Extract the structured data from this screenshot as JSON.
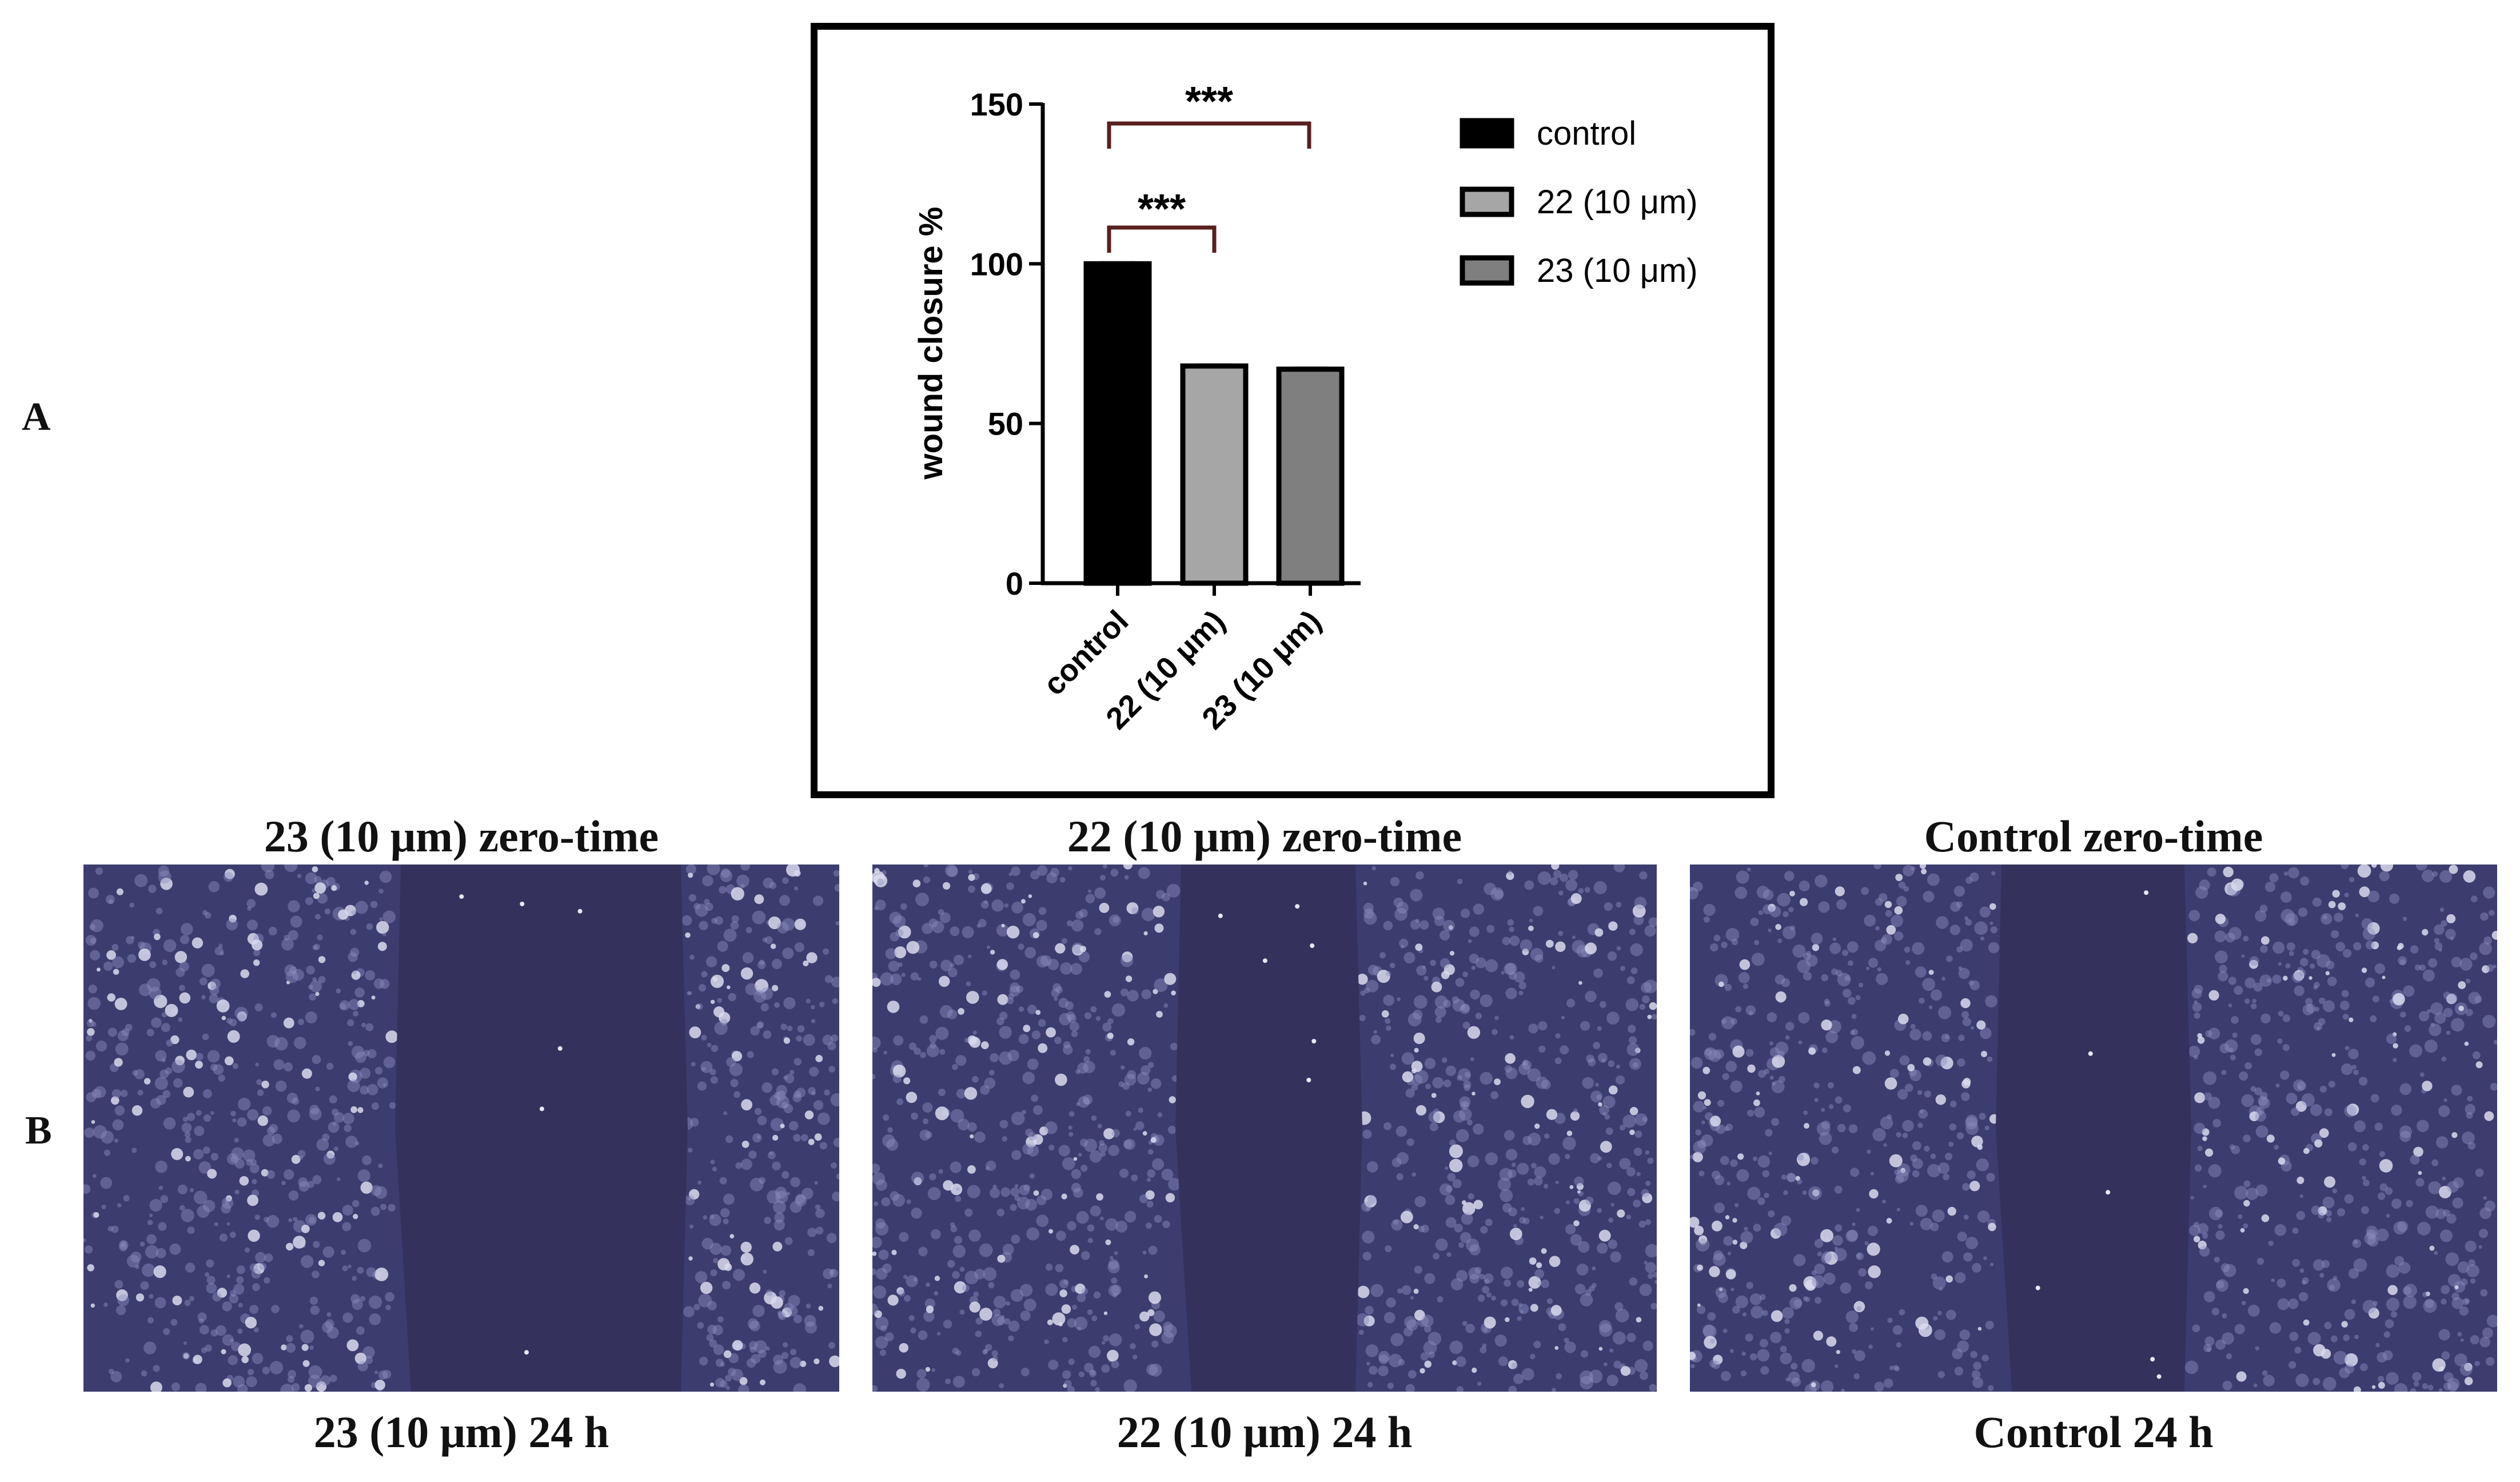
{
  "panels": {
    "a_label": "A",
    "b_label": "B"
  },
  "colors": {
    "control": "#000000",
    "c22": "#a6a6a6",
    "c23": "#7f7f7f",
    "bracket": "#5a1f1f",
    "cells": "#3c3d6e",
    "scratch": "#34325c"
  },
  "chart_data": {
    "type": "bar",
    "categories": [
      "control",
      "22 (10 μm)",
      "23 (10 μm)"
    ],
    "series": [
      {
        "name": "control",
        "values": [
          100,
          null,
          null
        ]
      },
      {
        "name": "22 (10 μm)",
        "values": [
          null,
          68,
          null
        ]
      },
      {
        "name": "23 (10 μm)",
        "values": [
          null,
          null,
          67
        ]
      }
    ],
    "ylabel": "wound closure %",
    "xlabel": "",
    "ylim": [
      0,
      150
    ],
    "yticks": [
      0,
      50,
      100,
      150
    ],
    "legend": {
      "position": "right",
      "entries": [
        "control",
        "22 (10 μm)",
        "23 (10 μm)"
      ]
    },
    "annotations": [
      {
        "from": "control",
        "to": "22 (10 μm)",
        "text": "***"
      },
      {
        "from": "control",
        "to": "23 (10 μm)",
        "text": "***"
      }
    ],
    "grid": false
  },
  "micrographs": [
    {
      "top_caption": "23 (10 μm) zero-time",
      "bottom_caption": "23 (10 μm) 24 h",
      "icon": "cell-micrograph"
    },
    {
      "top_caption": "22 (10 μm) zero-time",
      "bottom_caption": "22 (10 μm) 24 h",
      "icon": "cell-micrograph"
    },
    {
      "top_caption": "Control zero-time",
      "bottom_caption": "Control 24 h",
      "icon": "cell-micrograph"
    }
  ]
}
